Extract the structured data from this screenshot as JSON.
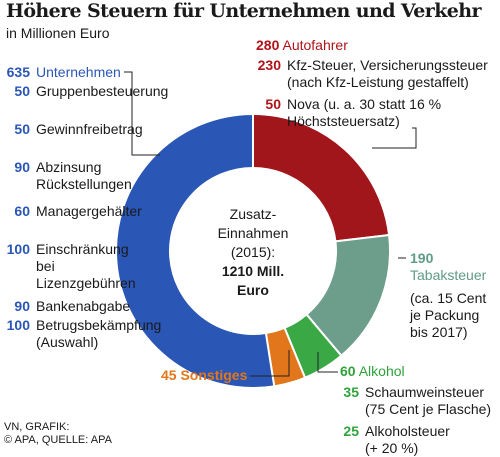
{
  "title": "Höhere Steuern für Unternehmen und Verkehr",
  "subtitle": "in Millionen Euro",
  "center": {
    "line1": "Zusatz-",
    "line2": "Einnahmen",
    "line3": "(2015):",
    "line4": "1210 Mill.",
    "line5": "Euro"
  },
  "credit": {
    "line1": "VN, GRAFIK:",
    "line2": "© APA, QUELLE: APA"
  },
  "colors": {
    "unternehmen": "#2a56b6",
    "autofahrer": "#a0161b",
    "tabak": "#6d9d8b",
    "alkohol": "#3aa845",
    "sonstiges": "#e2761a"
  },
  "chart_data": {
    "type": "pie",
    "title": "Höhere Steuern für Unternehmen und Verkehr",
    "subtitle": "in Millionen Euro",
    "total": 1210,
    "unit": "Millionen Euro",
    "slices": [
      {
        "name": "Autofahrer",
        "value": 280
      },
      {
        "name": "Tabaksteuer",
        "value": 190
      },
      {
        "name": "Alkohol",
        "value": 60
      },
      {
        "name": "Sonstiges",
        "value": 45
      },
      {
        "name": "Unternehmen",
        "value": 635
      }
    ],
    "breakdown": {
      "unternehmen": {
        "value": "635",
        "label": "Unternehmen",
        "items": [
          {
            "value": "50",
            "label": "Gruppenbesteuerung"
          },
          {
            "value": "50",
            "label": "Gewinnfreibetrag"
          },
          {
            "value": "90",
            "label": "Abzinsung Rückstellungen"
          },
          {
            "value": "60",
            "label": "Managergehälter"
          },
          {
            "value": "100",
            "label": "Einschränkung bei Lizenzgebühren"
          },
          {
            "value": "90",
            "label": "Bankenabgabe"
          },
          {
            "value": "100",
            "label": "Betrugsbekämpfung (Auswahl)"
          }
        ]
      },
      "autofahrer": {
        "value": "280",
        "label": "Autofahrer",
        "items": [
          {
            "value": "230",
            "label": "Kfz-Steuer, Versicherungssteuer (nach Kfz-Leistung gestaffelt)"
          },
          {
            "value": "50",
            "label": "Nova (u. a. 30 statt 16 % Höchststeuersatz)"
          }
        ]
      },
      "tabak": {
        "value": "190",
        "label": "Tabaksteuer",
        "note": "(ca. 15 Cent je Packung bis 2017)"
      },
      "alkohol": {
        "value": "60",
        "label": "Alkohol",
        "items": [
          {
            "value": "35",
            "label": "Schaumweinsteuer (75 Cent je Flasche)"
          },
          {
            "value": "25",
            "label": "Alkoholsteuer (+ 20 %)"
          }
        ]
      },
      "sonstiges": {
        "value": "45",
        "label": "Sonstiges"
      }
    }
  }
}
